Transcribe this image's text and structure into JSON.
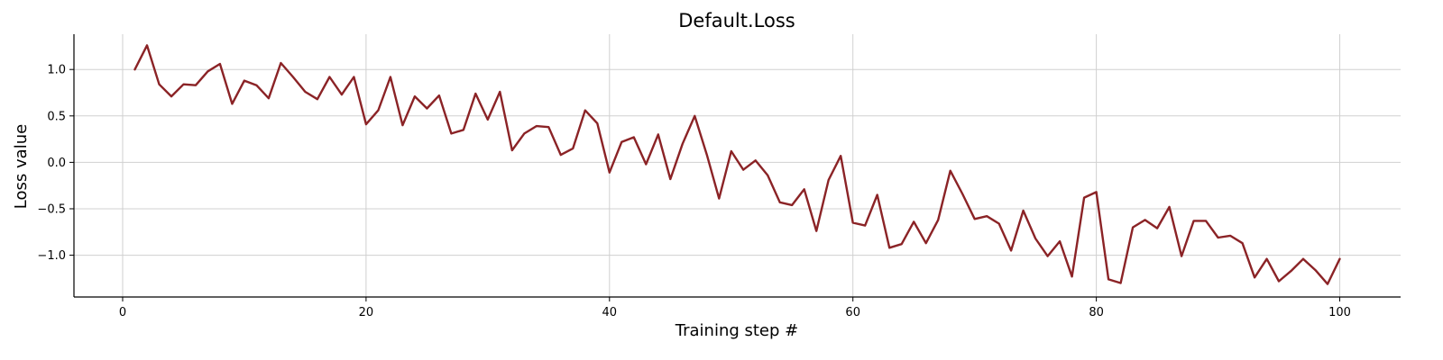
{
  "chart_data": {
    "type": "line",
    "title": "Default.Loss",
    "xlabel": "Training step #",
    "ylabel": "Loss value",
    "xlim": [
      -4,
      105
    ],
    "ylim": [
      -1.45,
      1.38
    ],
    "xticks": [
      0,
      20,
      40,
      60,
      80,
      100
    ],
    "yticks": [
      -1.0,
      -0.5,
      0.0,
      0.5,
      1.0
    ],
    "xtick_labels": [
      "0",
      "20",
      "40",
      "60",
      "80",
      "100"
    ],
    "ytick_labels": [
      "−1.0",
      "−0.5",
      "0.0",
      "0.5",
      "1.0"
    ],
    "grid": true,
    "color": "#8b2326",
    "series": [
      {
        "x": [
          1,
          2,
          3,
          4,
          5,
          6,
          7,
          8,
          9,
          10,
          11,
          12,
          13,
          14,
          15,
          16,
          17,
          18,
          19,
          20,
          21,
          22,
          23,
          24,
          25,
          26,
          27,
          28,
          29,
          30,
          31,
          32,
          33,
          34,
          35,
          36,
          37,
          38,
          39,
          40,
          41,
          42,
          43,
          44,
          45,
          46,
          47,
          48,
          49,
          50,
          51,
          52,
          53,
          54,
          55,
          56,
          57,
          58,
          59,
          60,
          61,
          62,
          63,
          64,
          65,
          66,
          67,
          68,
          69,
          70,
          71,
          72,
          73,
          74,
          75,
          76,
          77,
          78,
          79,
          80,
          81,
          82,
          83,
          84,
          85,
          86,
          87,
          88,
          89,
          90,
          91,
          92,
          93,
          94,
          95,
          96,
          97,
          98,
          99,
          100
        ],
        "values": [
          1.0,
          1.26,
          0.84,
          0.71,
          0.84,
          0.83,
          0.98,
          1.06,
          0.63,
          0.88,
          0.83,
          0.69,
          1.07,
          0.92,
          0.76,
          0.68,
          0.92,
          0.73,
          0.92,
          0.41,
          0.56,
          0.92,
          0.4,
          0.71,
          0.58,
          0.72,
          0.31,
          0.35,
          0.74,
          0.46,
          0.76,
          0.13,
          0.31,
          0.39,
          0.38,
          0.08,
          0.15,
          0.56,
          0.42,
          -0.11,
          0.22,
          0.27,
          -0.02,
          0.3,
          -0.18,
          0.2,
          0.5,
          0.08,
          -0.39,
          0.12,
          -0.08,
          0.02,
          -0.14,
          -0.43,
          -0.46,
          -0.29,
          -0.74,
          -0.19,
          0.07,
          -0.65,
          -0.68,
          -0.35,
          -0.92,
          -0.88,
          -0.64,
          -0.87,
          -0.62,
          -0.09,
          -0.34,
          -0.61,
          -0.58,
          -0.66,
          -0.95,
          -0.52,
          -0.82,
          -1.01,
          -0.85,
          -1.23,
          -0.38,
          -0.32,
          -1.26,
          -1.3,
          -0.7,
          -0.62,
          -0.71,
          -0.48,
          -1.01,
          -0.63,
          -0.63,
          -0.81,
          -0.79,
          -0.87,
          -1.24,
          -1.04,
          -1.28,
          -1.17,
          -1.04,
          -1.16,
          -1.31,
          -1.04
        ]
      }
    ]
  }
}
